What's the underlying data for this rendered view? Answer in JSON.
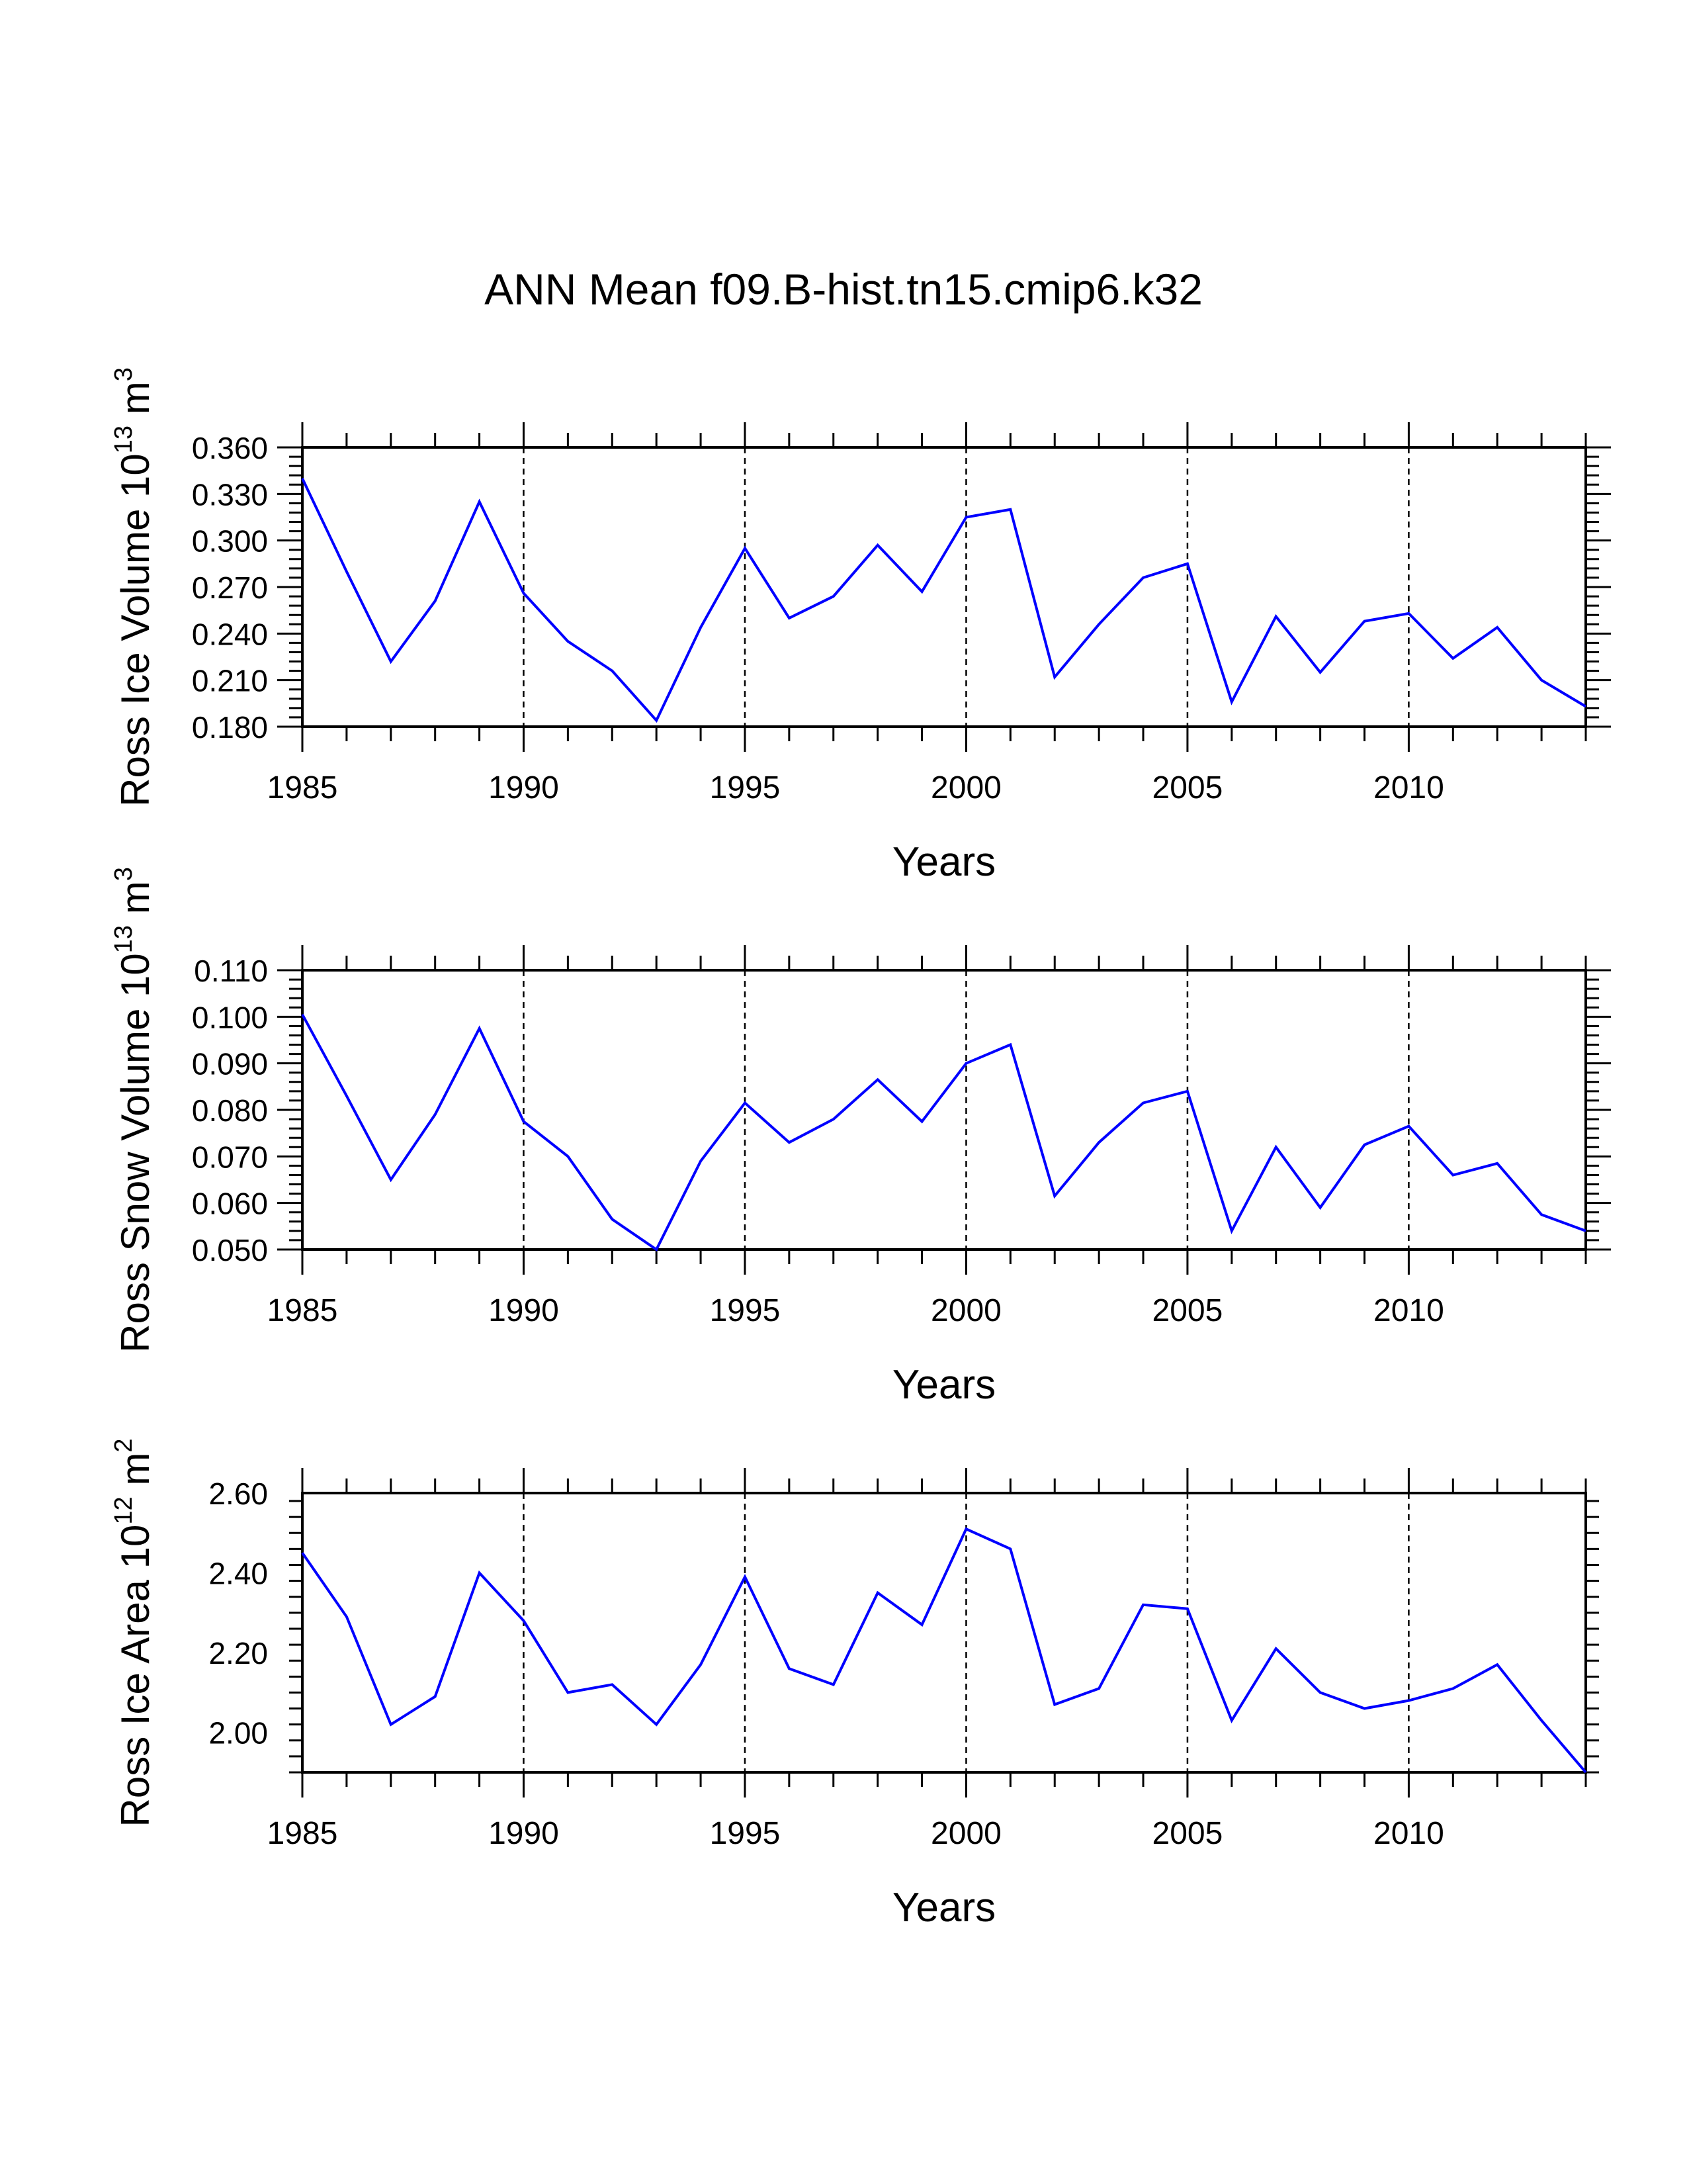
{
  "title": "ANN Mean f09.B-hist.tn15.cmip6.k32",
  "colors": {
    "series": "#0000ff",
    "axis": "#000000",
    "grid": "#000000",
    "background": "#ffffff"
  },
  "chart_data": [
    {
      "type": "line",
      "name": "ross-ice-volume",
      "xlabel": "Years",
      "ylabel": {
        "text": "Ross Ice Volume 10",
        "sup1": "13",
        "mid": " m",
        "sup2": "3"
      },
      "x": [
        1985,
        1986,
        1987,
        1988,
        1989,
        1990,
        1991,
        1992,
        1993,
        1994,
        1995,
        1996,
        1997,
        1998,
        1999,
        2000,
        2001,
        2002,
        2003,
        2004,
        2005,
        2006,
        2007,
        2008,
        2009,
        2010,
        2011,
        2012,
        2013,
        2014
      ],
      "values": [
        0.34,
        0.28,
        0.222,
        0.261,
        0.325,
        0.266,
        0.235,
        0.216,
        0.184,
        0.244,
        0.295,
        0.25,
        0.264,
        0.297,
        0.267,
        0.315,
        0.32,
        0.212,
        0.246,
        0.276,
        0.285,
        0.196,
        0.251,
        0.215,
        0.248,
        0.253,
        0.224,
        0.244,
        0.21,
        0.193
      ],
      "xlim": [
        1985,
        2014
      ],
      "ylim": [
        0.18,
        0.36
      ],
      "x_ticks": [
        "1985",
        "1990",
        "1995",
        "2000",
        "2005",
        "2010"
      ],
      "y_ticks": [
        "0.180",
        "0.210",
        "0.240",
        "0.270",
        "0.300",
        "0.330",
        "0.360"
      ],
      "grid_x": [
        1990,
        1995,
        2000,
        2005,
        2010
      ]
    },
    {
      "type": "line",
      "name": "ross-snow-volume",
      "xlabel": "Years",
      "ylabel": {
        "text": "Ross Snow Volume 10",
        "sup1": "13",
        "mid": " m",
        "sup2": "3"
      },
      "x": [
        1985,
        1986,
        1987,
        1988,
        1989,
        1990,
        1991,
        1992,
        1993,
        1994,
        1995,
        1996,
        1997,
        1998,
        1999,
        2000,
        2001,
        2002,
        2003,
        2004,
        2005,
        2006,
        2007,
        2008,
        2009,
        2010,
        2011,
        2012,
        2013,
        2014
      ],
      "values": [
        0.1005,
        0.083,
        0.065,
        0.079,
        0.0975,
        0.0775,
        0.07,
        0.0565,
        0.05,
        0.069,
        0.0815,
        0.073,
        0.078,
        0.0865,
        0.0775,
        0.09,
        0.094,
        0.0615,
        0.073,
        0.0815,
        0.084,
        0.054,
        0.072,
        0.059,
        0.0725,
        0.0765,
        0.066,
        0.0685,
        0.0575,
        0.054
      ],
      "xlim": [
        1985,
        2014
      ],
      "ylim": [
        0.05,
        0.11
      ],
      "x_ticks": [
        "1985",
        "1990",
        "1995",
        "2000",
        "2005",
        "2010"
      ],
      "y_ticks": [
        "0.050",
        "0.060",
        "0.070",
        "0.080",
        "0.090",
        "0.100",
        "0.110"
      ],
      "grid_x": [
        1990,
        1995,
        2000,
        2005,
        2010
      ]
    },
    {
      "type": "line",
      "name": "ross-ice-area",
      "xlabel": "Years",
      "ylabel": {
        "text": "Ross Ice Area 10",
        "sup1": "12",
        "mid": " m",
        "sup2": "2"
      },
      "x": [
        1985,
        1986,
        1987,
        1988,
        1989,
        1990,
        1991,
        1992,
        1993,
        1994,
        1995,
        1996,
        1997,
        1998,
        1999,
        2000,
        2001,
        2002,
        2003,
        2004,
        2005,
        2006,
        2007,
        2008,
        2009,
        2010,
        2011,
        2012,
        2013,
        2014
      ],
      "values": [
        2.45,
        2.29,
        2.02,
        2.09,
        2.4,
        2.28,
        2.1,
        2.12,
        2.02,
        2.17,
        2.39,
        2.16,
        2.12,
        2.35,
        2.27,
        2.51,
        2.46,
        2.07,
        2.11,
        2.32,
        2.31,
        2.03,
        2.21,
        2.1,
        2.06,
        2.08,
        2.11,
        2.17,
        2.03,
        1.9
      ],
      "xlim": [
        1985,
        2014
      ],
      "ylim": [
        1.9,
        2.6
      ],
      "x_ticks": [
        "1985",
        "1990",
        "1995",
        "2000",
        "2005",
        "2010"
      ],
      "y_ticks": [
        "2.00",
        "2.20",
        "2.40",
        "2.60"
      ],
      "grid_x": [
        1990,
        1995,
        2000,
        2005,
        2010
      ]
    }
  ]
}
